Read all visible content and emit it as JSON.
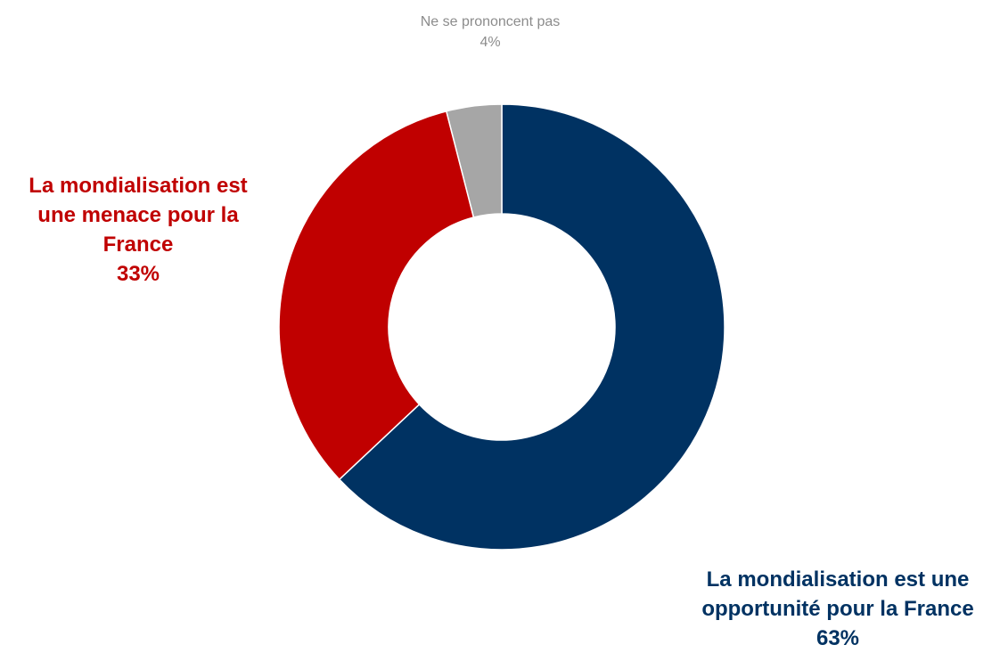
{
  "chart_data": {
    "type": "donut",
    "title": "",
    "slices": [
      {
        "name": "La mondialisation est une opportunité pour la France",
        "label_lines": [
          "La mondialisation est une",
          "opportunité pour la France"
        ],
        "value": 63,
        "value_label": "63%",
        "color": "#003262"
      },
      {
        "name": "La mondialisation est une menace pour la France",
        "label_lines": [
          "La mondialisation est",
          "une menace pour la",
          "France"
        ],
        "value": 33,
        "value_label": "33%",
        "color": "#c00000"
      },
      {
        "name": "Ne se prononcent pas",
        "label_lines": [
          "Ne se prononcent pas"
        ],
        "value": 4,
        "value_label": "4%",
        "color": "#a6a6a6"
      }
    ],
    "start": "12 o'clock",
    "direction": "clockwise",
    "legend": "none"
  }
}
